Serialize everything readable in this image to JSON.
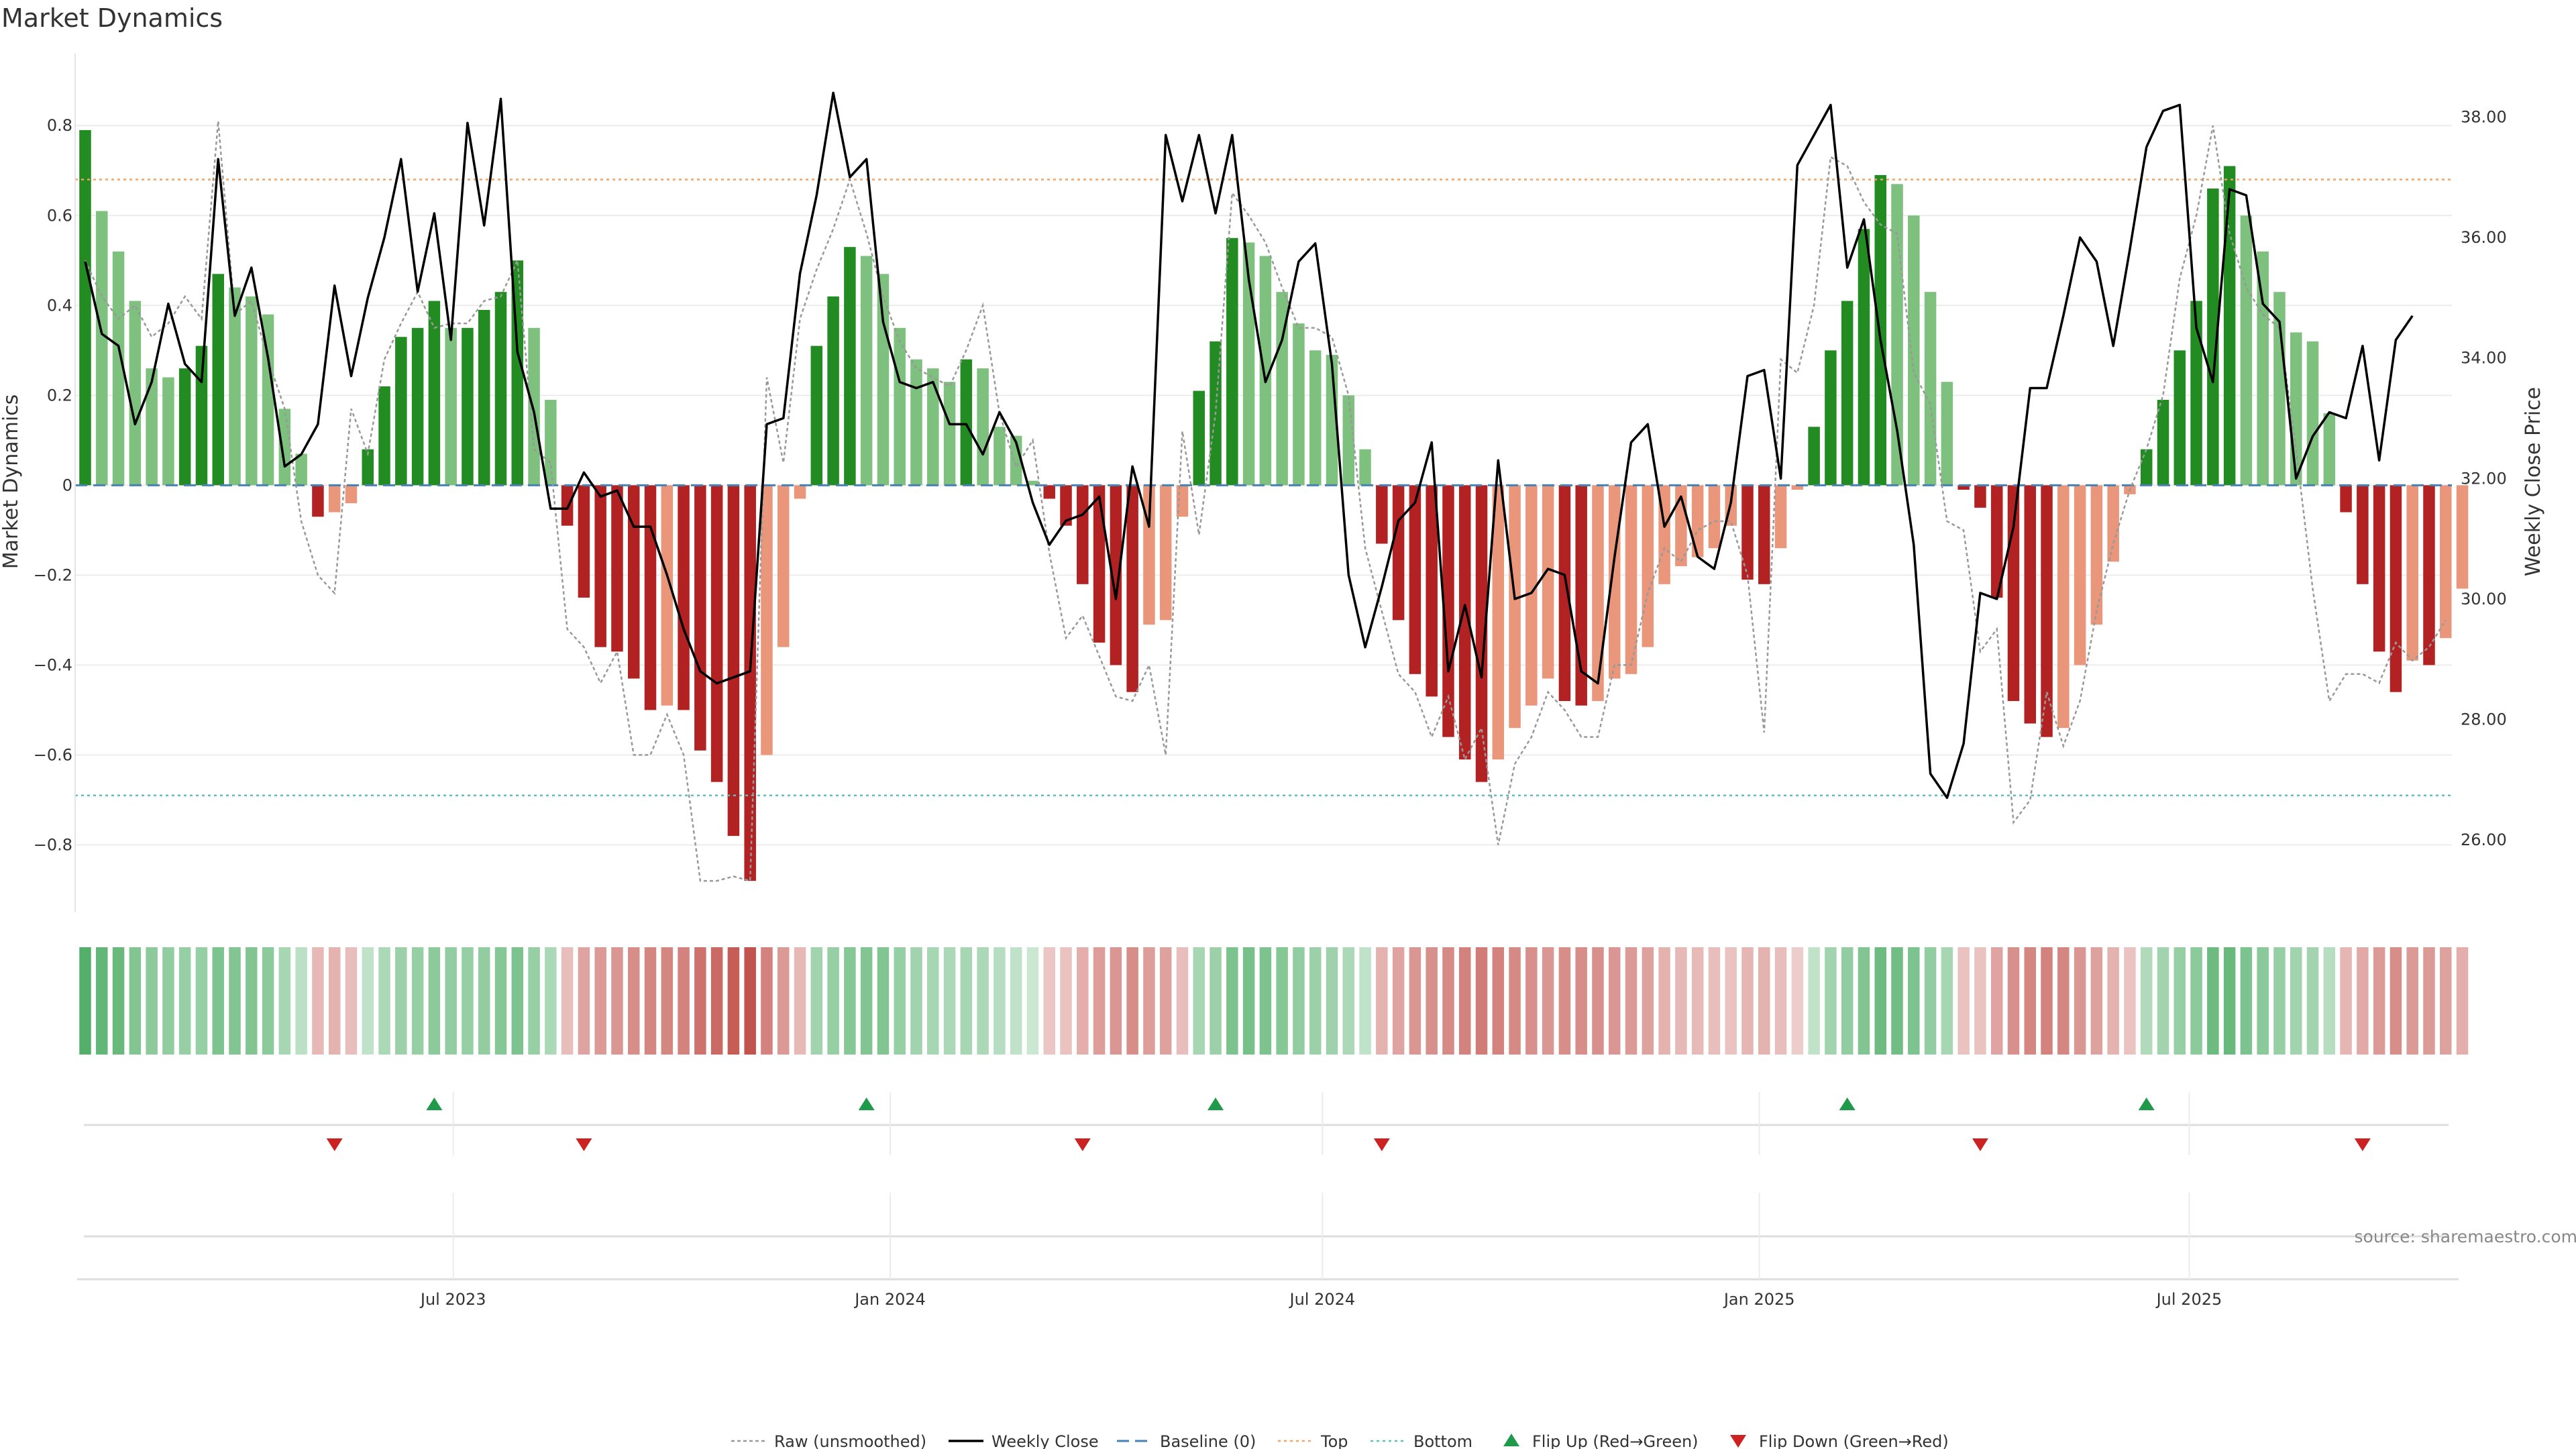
{
  "chart_data": {
    "type": "bar",
    "title": "Market Dynamics",
    "ylabel": "Market Dynamics",
    "y2label": "Weekly Close Price",
    "ylim": [
      -0.95,
      0.96
    ],
    "y2lim": [
      24.8,
      39.05
    ],
    "yticks": [
      {
        "v": 0.8,
        "label": "0.8"
      },
      {
        "v": 0.6,
        "label": "0.6"
      },
      {
        "v": 0.4,
        "label": "0.4"
      },
      {
        "v": 0.2,
        "label": "0.2"
      },
      {
        "v": 0,
        "label": "0"
      },
      {
        "v": -0.2,
        "label": "−0.2"
      },
      {
        "v": -0.4,
        "label": "−0.4"
      },
      {
        "v": -0.6,
        "label": "−0.6"
      },
      {
        "v": -0.8,
        "label": "−0.8"
      }
    ],
    "y2ticks": [
      {
        "v": 38,
        "label": "38.00"
      },
      {
        "v": 36,
        "label": "36.00"
      },
      {
        "v": 34,
        "label": "34.00"
      },
      {
        "v": 32,
        "label": "32.00"
      },
      {
        "v": 30,
        "label": "30.00"
      },
      {
        "v": 28,
        "label": "28.00"
      },
      {
        "v": 26,
        "label": "26.00"
      }
    ],
    "x_start": "2023-01-27",
    "x_step_days": 7,
    "xticks": [
      {
        "date": "2023-07-01",
        "label": "Jul 2023"
      },
      {
        "date": "2024-01-01",
        "label": "Jan 2024"
      },
      {
        "date": "2024-07-01",
        "label": "Jul 2024"
      },
      {
        "date": "2025-01-01",
        "label": "Jan 2025"
      },
      {
        "date": "2025-07-01",
        "label": "Jul 2025"
      }
    ],
    "grid": true,
    "legend_position": "bottom",
    "reference_lines": {
      "baseline": 0,
      "top": 0.68,
      "bottom": -0.69
    },
    "dynamics": [
      0.79,
      0.61,
      0.52,
      0.41,
      0.26,
      0.24,
      0.26,
      0.31,
      0.47,
      0.44,
      0.42,
      0.38,
      0.17,
      0.07,
      -0.07,
      -0.06,
      -0.04,
      0.08,
      0.22,
      0.33,
      0.35,
      0.41,
      0.35,
      0.35,
      0.39,
      0.43,
      0.5,
      0.35,
      0.19,
      -0.09,
      -0.25,
      -0.36,
      -0.37,
      -0.43,
      -0.5,
      -0.49,
      -0.5,
      -0.59,
      -0.66,
      -0.78,
      -0.88,
      -0.6,
      -0.36,
      -0.03,
      0.31,
      0.42,
      0.53,
      0.51,
      0.47,
      0.35,
      0.28,
      0.26,
      0.23,
      0.28,
      0.26,
      0.13,
      0.11,
      0.01,
      -0.03,
      -0.09,
      -0.22,
      -0.35,
      -0.4,
      -0.46,
      -0.31,
      -0.3,
      -0.07,
      0.21,
      0.32,
      0.55,
      0.54,
      0.51,
      0.43,
      0.36,
      0.3,
      0.29,
      0.2,
      0.08,
      -0.13,
      -0.3,
      -0.42,
      -0.47,
      -0.56,
      -0.61,
      -0.66,
      -0.61,
      -0.54,
      -0.49,
      -0.43,
      -0.48,
      -0.49,
      -0.48,
      -0.43,
      -0.42,
      -0.36,
      -0.22,
      -0.18,
      -0.16,
      -0.14,
      -0.09,
      -0.21,
      -0.22,
      -0.14,
      -0.01,
      0.13,
      0.3,
      0.41,
      0.57,
      0.69,
      0.67,
      0.6,
      0.43,
      0.23,
      -0.01,
      -0.05,
      -0.25,
      -0.48,
      -0.53,
      -0.56,
      -0.54,
      -0.4,
      -0.31,
      -0.17,
      -0.02,
      0.08,
      0.19,
      0.3,
      0.41,
      0.66,
      0.71,
      0.6,
      0.52,
      0.43,
      0.34,
      0.32,
      0.16,
      -0.06,
      -0.22,
      -0.37,
      -0.46,
      -0.39,
      -0.4,
      -0.34,
      -0.23
    ],
    "raw": [
      0.5,
      0.42,
      0.37,
      0.4,
      0.33,
      0.36,
      0.42,
      0.37,
      0.81,
      0.38,
      0.41,
      0.28,
      0.17,
      -0.08,
      -0.2,
      -0.24,
      0.17,
      0.07,
      0.28,
      0.36,
      0.43,
      0.35,
      0.36,
      0.36,
      0.41,
      0.42,
      0.5,
      0.08,
      0.05,
      -0.32,
      -0.36,
      -0.44,
      -0.37,
      -0.6,
      -0.6,
      -0.51,
      -0.6,
      -0.88,
      -0.88,
      -0.87,
      -0.88,
      0.24,
      0.05,
      0.37,
      0.48,
      0.57,
      0.68,
      0.56,
      0.42,
      0.32,
      0.26,
      0.24,
      0.22,
      0.3,
      0.4,
      0.16,
      0.04,
      0.1,
      -0.15,
      -0.34,
      -0.29,
      -0.38,
      -0.47,
      -0.48,
      -0.4,
      -0.6,
      0.12,
      -0.11,
      0.16,
      0.65,
      0.6,
      0.54,
      0.44,
      0.35,
      0.35,
      0.33,
      0.2,
      -0.14,
      -0.28,
      -0.42,
      -0.46,
      -0.56,
      -0.47,
      -0.61,
      -0.54,
      -0.8,
      -0.62,
      -0.56,
      -0.46,
      -0.5,
      -0.56,
      -0.56,
      -0.4,
      -0.4,
      -0.24,
      -0.14,
      -0.17,
      -0.1,
      -0.08,
      -0.08,
      -0.2,
      -0.55,
      0.28,
      0.25,
      0.4,
      0.73,
      0.71,
      0.63,
      0.58,
      0.56,
      0.25,
      0.18,
      -0.08,
      -0.1,
      -0.37,
      -0.32,
      -0.75,
      -0.7,
      -0.46,
      -0.58,
      -0.48,
      -0.28,
      -0.13,
      -0.01,
      0.08,
      0.2,
      0.46,
      0.6,
      0.8,
      0.56,
      0.44,
      0.38,
      0.35,
      0.08,
      -0.23,
      -0.48,
      -0.42,
      -0.42,
      -0.44,
      -0.35,
      -0.39,
      -0.36,
      -0.3
    ],
    "close": [
      35.6,
      34.4,
      34.2,
      32.9,
      33.6,
      34.9,
      33.9,
      33.6,
      37.3,
      34.7,
      35.5,
      34.0,
      32.2,
      32.4,
      32.9,
      35.2,
      33.7,
      35.0,
      36.0,
      37.3,
      35.1,
      36.4,
      34.3,
      37.9,
      36.2,
      38.3,
      34.1,
      33.1,
      31.5,
      31.5,
      32.1,
      31.7,
      31.8,
      31.2,
      31.2,
      30.4,
      29.5,
      28.8,
      28.6,
      28.7,
      28.8,
      32.9,
      33.0,
      35.4,
      36.7,
      38.4,
      37.0,
      37.3,
      34.6,
      33.6,
      33.5,
      33.6,
      32.9,
      32.9,
      32.4,
      33.1,
      32.6,
      31.6,
      30.9,
      31.3,
      31.4,
      31.7,
      30.0,
      32.2,
      31.2,
      37.7,
      36.6,
      37.7,
      36.4,
      37.7,
      35.3,
      33.6,
      34.3,
      35.6,
      35.9,
      33.9,
      30.4,
      29.2,
      30.2,
      31.3,
      31.6,
      32.6,
      28.8,
      29.9,
      28.7,
      32.3,
      30.0,
      30.1,
      30.5,
      30.4,
      28.8,
      28.6,
      30.7,
      32.6,
      32.9,
      31.2,
      31.7,
      30.7,
      30.5,
      31.6,
      33.7,
      33.8,
      32.0,
      37.2,
      37.7,
      38.2,
      35.5,
      36.3,
      34.3,
      32.8,
      30.9,
      27.1,
      26.7,
      27.6,
      30.1,
      30.0,
      31.2,
      33.5,
      33.5,
      34.7,
      36.0,
      35.6,
      34.2,
      35.8,
      37.5,
      38.1,
      38.2,
      34.5,
      33.6,
      36.8,
      36.7,
      34.9,
      34.6,
      32.0,
      32.7,
      33.1,
      33.0,
      34.2,
      32.3,
      34.3,
      34.7
    ],
    "regime_strength": [
      0.82,
      0.75,
      0.72,
      0.6,
      0.55,
      0.52,
      0.5,
      0.5,
      0.62,
      0.6,
      0.6,
      0.55,
      0.42,
      0.32,
      0.35,
      0.38,
      0.32,
      0.3,
      0.4,
      0.48,
      0.5,
      0.55,
      0.52,
      0.5,
      0.52,
      0.58,
      0.62,
      0.5,
      0.4,
      0.32,
      0.45,
      0.5,
      0.52,
      0.56,
      0.6,
      0.6,
      0.62,
      0.7,
      0.74,
      0.8,
      0.85,
      0.62,
      0.5,
      0.35,
      0.45,
      0.5,
      0.58,
      0.6,
      0.6,
      0.5,
      0.45,
      0.42,
      0.4,
      0.42,
      0.4,
      0.35,
      0.3,
      0.25,
      0.28,
      0.3,
      0.4,
      0.48,
      0.52,
      0.56,
      0.48,
      0.46,
      0.32,
      0.42,
      0.48,
      0.62,
      0.65,
      0.62,
      0.58,
      0.52,
      0.48,
      0.46,
      0.4,
      0.3,
      0.38,
      0.45,
      0.52,
      0.55,
      0.58,
      0.62,
      0.65,
      0.62,
      0.58,
      0.55,
      0.52,
      0.56,
      0.56,
      0.55,
      0.52,
      0.5,
      0.46,
      0.38,
      0.35,
      0.34,
      0.32,
      0.3,
      0.36,
      0.38,
      0.32,
      0.25,
      0.3,
      0.45,
      0.52,
      0.6,
      0.7,
      0.68,
      0.62,
      0.52,
      0.42,
      0.3,
      0.3,
      0.45,
      0.55,
      0.6,
      0.62,
      0.6,
      0.52,
      0.46,
      0.38,
      0.3,
      0.38,
      0.45,
      0.5,
      0.55,
      0.7,
      0.72,
      0.62,
      0.56,
      0.5,
      0.45,
      0.44,
      0.35,
      0.36,
      0.42,
      0.5,
      0.56,
      0.5,
      0.5,
      0.46,
      0.4
    ],
    "flip_up": [
      "2023-06-23",
      "2023-12-22",
      "2024-05-17",
      "2025-02-07",
      "2025-06-13"
    ],
    "flip_down": [
      "2023-05-12",
      "2023-08-25",
      "2024-03-22",
      "2024-07-26",
      "2025-04-04",
      "2025-09-12"
    ],
    "series": [
      {
        "name": "Raw (unsmoothed)"
      },
      {
        "name": "Weekly Close"
      },
      {
        "name": "Baseline (0)"
      },
      {
        "name": "Top"
      },
      {
        "name": "Bottom"
      },
      {
        "name": "Flip Up (Red→Green)"
      },
      {
        "name": "Flip Down (Green→Red)"
      }
    ],
    "colors": {
      "strong_up": "#228b22",
      "weak_up": "#7ec07e",
      "strong_down": "#b22222",
      "weak_down": "#e9967a",
      "raw": "#999999",
      "close": "#000000",
      "baseline": "#4682b4",
      "top": "#f4a460",
      "bottom": "#5fc0c0",
      "flip_up": "#1f9a4a",
      "flip_down": "#cc2222"
    }
  },
  "source": "source: sharemaestro.com"
}
